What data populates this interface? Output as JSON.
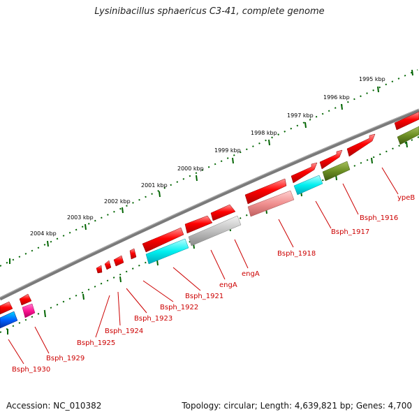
{
  "title": "Lysinibacillus sphaericus C3-41, complete genome",
  "accession": "Accession: NC_010382",
  "topology": "Topology: circular; Length: 4,639,821 bp; Genes: 4,700",
  "colors": {
    "forward_gene": "#ff0000",
    "backbone": "#808080",
    "ticks": "#006400",
    "label": "#cc0000"
  },
  "kbp_ticks": [
    "1995 kbp",
    "1996 kbp",
    "1997 kbp",
    "1998 kbp",
    "1999 kbp",
    "2000 kbp",
    "2001 kbp",
    "2002 kbp",
    "2003 kbp",
    "2004 kbp"
  ],
  "gene_labels": [
    "ypeB",
    "Bsph_1916",
    "Bsph_1917",
    "Bsph_1918",
    "engA",
    "engA",
    "Bsph_1921",
    "Bsph_1922",
    "Bsph_1923",
    "Bsph_1924",
    "Bsph_1925",
    "Bsph_1929",
    "Bsph_1930"
  ]
}
